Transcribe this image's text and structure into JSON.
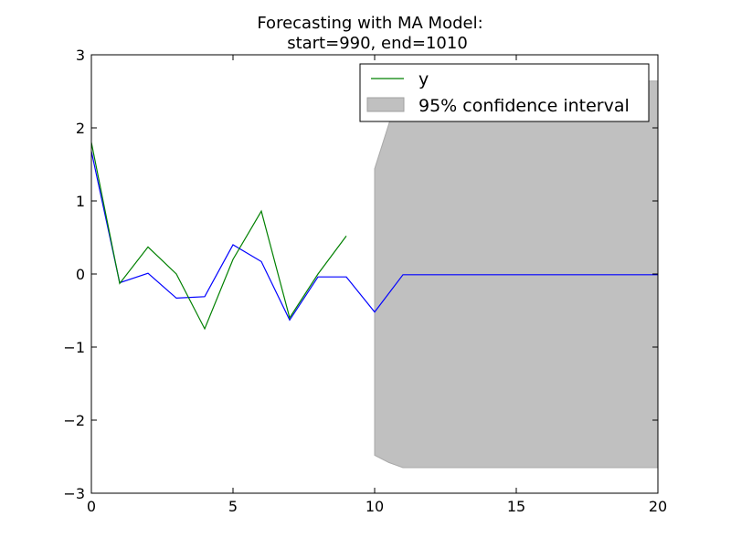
{
  "chart_data": {
    "type": "line",
    "title": "Forecasting with MA Model:",
    "subtitle": "start=990, end=1010",
    "xlabel": "",
    "ylabel": "",
    "xlim": [
      0,
      20
    ],
    "ylim": [
      -3,
      3
    ],
    "x_ticks": [
      "0",
      "5",
      "10",
      "15",
      "20"
    ],
    "y_ticks": [
      "−3",
      "−2",
      "−1",
      "0",
      "1",
      "2",
      "3"
    ],
    "grid": false,
    "legend_placement": "top-right",
    "series": [
      {
        "name": "y",
        "color": "#008000",
        "x": [
          0,
          1,
          2,
          3,
          4,
          5,
          6,
          7,
          8,
          9
        ],
        "values": [
          1.8,
          -0.13,
          0.37,
          0.0,
          -0.75,
          0.2,
          0.86,
          -0.6,
          0.0,
          0.52
        ]
      },
      {
        "name": "",
        "color": "#0000ff",
        "x": [
          0,
          1,
          2,
          3,
          4,
          5,
          6,
          7,
          8,
          9,
          10,
          11,
          12,
          13,
          14,
          15,
          16,
          17,
          18,
          19,
          20
        ],
        "values": [
          1.68,
          -0.12,
          0.01,
          -0.33,
          -0.31,
          0.4,
          0.17,
          -0.63,
          -0.04,
          -0.04,
          -0.52,
          -0.01,
          -0.01,
          -0.01,
          -0.01,
          -0.01,
          -0.01,
          -0.01,
          -0.01,
          -0.01,
          -0.01
        ]
      }
    ],
    "confidence_interval": {
      "name": "95% confidence interval",
      "color": "#c0c0c0",
      "x": [
        10,
        10.5,
        11,
        12,
        13,
        14,
        15,
        16,
        17,
        18,
        19,
        20
      ],
      "lower": [
        -2.48,
        -2.58,
        -2.65,
        -2.65,
        -2.65,
        -2.65,
        -2.65,
        -2.65,
        -2.65,
        -2.65,
        -2.65,
        -2.65
      ],
      "upper": [
        1.44,
        2.05,
        2.64,
        2.64,
        2.64,
        2.64,
        2.64,
        2.64,
        2.64,
        2.64,
        2.64,
        2.64
      ]
    }
  }
}
